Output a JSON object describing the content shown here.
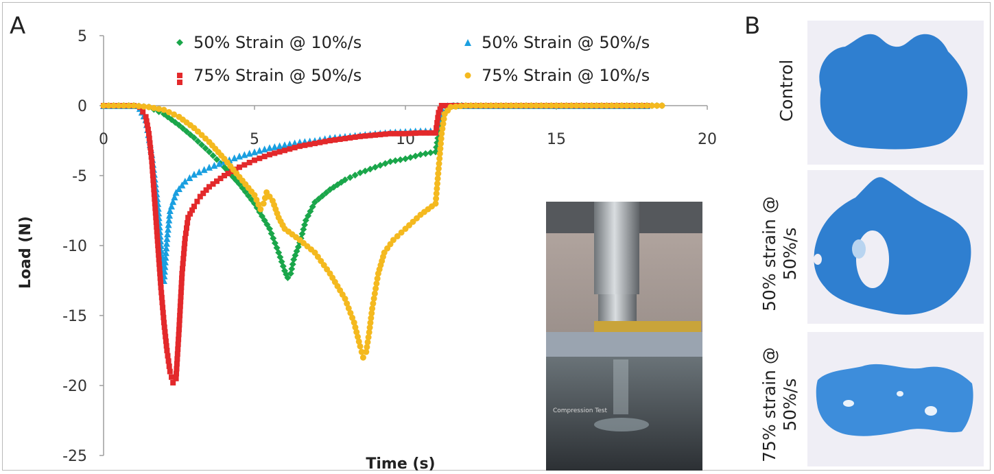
{
  "panels": {
    "a_label": "A",
    "b_label": "B"
  },
  "chart_data": {
    "type": "scatter",
    "xlabel": "Time (s)",
    "ylabel": "Load (N)",
    "xlim": [
      0,
      20
    ],
    "ylim": [
      -25,
      5
    ],
    "xticks": [
      0,
      5,
      10,
      15,
      20
    ],
    "yticks": [
      5,
      0,
      -5,
      -10,
      -15,
      -20,
      -25
    ],
    "grid": false,
    "legend_position": "top",
    "series": [
      {
        "name": "50% Strain @ 10%/s",
        "color": "#1aa64a",
        "marker": "diamond",
        "points": [
          [
            0,
            0
          ],
          [
            1,
            0
          ],
          [
            1.5,
            -0.1
          ],
          [
            2,
            -0.6
          ],
          [
            2.5,
            -1.4
          ],
          [
            3,
            -2.3
          ],
          [
            3.5,
            -3.3
          ],
          [
            4,
            -4.4
          ],
          [
            4.5,
            -5.6
          ],
          [
            5,
            -7
          ],
          [
            5.5,
            -8.8
          ],
          [
            5.8,
            -10.5
          ],
          [
            6,
            -11.8
          ],
          [
            6.1,
            -12.3
          ],
          [
            6.2,
            -12
          ],
          [
            6.3,
            -11
          ],
          [
            6.5,
            -9.8
          ],
          [
            6.7,
            -8.2
          ],
          [
            7,
            -6.9
          ],
          [
            7.5,
            -6
          ],
          [
            8,
            -5.3
          ],
          [
            8.5,
            -4.8
          ],
          [
            9,
            -4.4
          ],
          [
            9.5,
            -4
          ],
          [
            10,
            -3.8
          ],
          [
            10.5,
            -3.5
          ],
          [
            11,
            -3.3
          ],
          [
            11.1,
            -2
          ],
          [
            11.2,
            -0.8
          ],
          [
            11.4,
            -0.2
          ],
          [
            11.6,
            0
          ],
          [
            12,
            0
          ],
          [
            13,
            0
          ],
          [
            14,
            0
          ],
          [
            15,
            0
          ],
          [
            16,
            0
          ],
          [
            17,
            0
          ],
          [
            18,
            0
          ],
          [
            18.5,
            0
          ]
        ]
      },
      {
        "name": "50% Strain @ 50%/s",
        "color": "#1a9fe0",
        "marker": "triangle",
        "points": [
          [
            0,
            0
          ],
          [
            1,
            0
          ],
          [
            1.2,
            -0.2
          ],
          [
            1.4,
            -1
          ],
          [
            1.6,
            -3.5
          ],
          [
            1.8,
            -7
          ],
          [
            1.9,
            -10
          ],
          [
            2,
            -12.5
          ],
          [
            2.1,
            -9.5
          ],
          [
            2.2,
            -7.5
          ],
          [
            2.4,
            -6.2
          ],
          [
            2.7,
            -5.4
          ],
          [
            3,
            -4.9
          ],
          [
            3.5,
            -4.4
          ],
          [
            4,
            -4
          ],
          [
            4.5,
            -3.6
          ],
          [
            5,
            -3.3
          ],
          [
            5.5,
            -3
          ],
          [
            6,
            -2.8
          ],
          [
            6.5,
            -2.6
          ],
          [
            7,
            -2.5
          ],
          [
            7.5,
            -2.3
          ],
          [
            8,
            -2.2
          ],
          [
            8.5,
            -2.1
          ],
          [
            9,
            -2
          ],
          [
            9.5,
            -1.9
          ],
          [
            10,
            -1.85
          ],
          [
            10.5,
            -1.8
          ],
          [
            11,
            -1.8
          ],
          [
            11.1,
            -1
          ],
          [
            11.2,
            -0.2
          ],
          [
            11.4,
            0
          ],
          [
            12,
            0
          ],
          [
            13,
            0
          ],
          [
            14,
            0
          ],
          [
            15,
            0
          ],
          [
            16,
            0
          ],
          [
            17,
            0
          ],
          [
            18,
            0
          ]
        ]
      },
      {
        "name": "75% Strain @ 50%/s",
        "color": "#e3292b",
        "marker": "square",
        "points": [
          [
            0,
            0
          ],
          [
            1,
            0
          ],
          [
            1.2,
            -0.1
          ],
          [
            1.4,
            -0.8
          ],
          [
            1.5,
            -2
          ],
          [
            1.6,
            -4
          ],
          [
            1.7,
            -7
          ],
          [
            1.8,
            -10
          ],
          [
            1.9,
            -13
          ],
          [
            2,
            -15.5
          ],
          [
            2.1,
            -17.5
          ],
          [
            2.2,
            -19
          ],
          [
            2.3,
            -19.8
          ],
          [
            2.4,
            -19.5
          ],
          [
            2.5,
            -16
          ],
          [
            2.6,
            -12
          ],
          [
            2.7,
            -9.5
          ],
          [
            2.8,
            -8
          ],
          [
            3,
            -7.2
          ],
          [
            3.2,
            -6.5
          ],
          [
            3.5,
            -5.8
          ],
          [
            4,
            -5
          ],
          [
            4.5,
            -4.4
          ],
          [
            5,
            -3.9
          ],
          [
            5.5,
            -3.5
          ],
          [
            6,
            -3.2
          ],
          [
            6.5,
            -2.9
          ],
          [
            7,
            -2.7
          ],
          [
            7.5,
            -2.5
          ],
          [
            8,
            -2.35
          ],
          [
            8.5,
            -2.2
          ],
          [
            9,
            -2.1
          ],
          [
            9.5,
            -2
          ],
          [
            10,
            -2
          ],
          [
            10.5,
            -1.95
          ],
          [
            11,
            -1.95
          ],
          [
            11.1,
            -0.5
          ],
          [
            11.2,
            0
          ],
          [
            11.5,
            0
          ],
          [
            12,
            0
          ],
          [
            13,
            0
          ],
          [
            14,
            0
          ],
          [
            15,
            0
          ],
          [
            16,
            0
          ],
          [
            17,
            0
          ],
          [
            18,
            0
          ]
        ]
      },
      {
        "name": "75% Strain @ 10%/s",
        "color": "#f4b91f",
        "marker": "circle",
        "points": [
          [
            0,
            0
          ],
          [
            1,
            0
          ],
          [
            1.5,
            -0.1
          ],
          [
            2,
            -0.3
          ],
          [
            2.5,
            -0.8
          ],
          [
            3,
            -1.6
          ],
          [
            3.5,
            -2.6
          ],
          [
            4,
            -3.8
          ],
          [
            4.5,
            -5.1
          ],
          [
            5,
            -6.4
          ],
          [
            5.2,
            -7.4
          ],
          [
            5.3,
            -7
          ],
          [
            5.4,
            -6.2
          ],
          [
            5.6,
            -6.8
          ],
          [
            5.8,
            -8
          ],
          [
            6,
            -8.8
          ],
          [
            6.5,
            -9.6
          ],
          [
            7,
            -10.5
          ],
          [
            7.5,
            -12
          ],
          [
            8,
            -13.8
          ],
          [
            8.3,
            -15.5
          ],
          [
            8.5,
            -17.2
          ],
          [
            8.6,
            -18
          ],
          [
            8.7,
            -17.6
          ],
          [
            8.8,
            -16.2
          ],
          [
            8.9,
            -14.5
          ],
          [
            9.1,
            -12
          ],
          [
            9.3,
            -10.5
          ],
          [
            9.6,
            -9.6
          ],
          [
            10,
            -8.8
          ],
          [
            10.5,
            -7.8
          ],
          [
            11,
            -7
          ],
          [
            11.1,
            -4.5
          ],
          [
            11.2,
            -2
          ],
          [
            11.3,
            -0.6
          ],
          [
            11.5,
            -0.1
          ],
          [
            12,
            0
          ],
          [
            13,
            0
          ],
          [
            14,
            0
          ],
          [
            15,
            0
          ],
          [
            16,
            0
          ],
          [
            17,
            0
          ],
          [
            18,
            0
          ],
          [
            18.5,
            0
          ]
        ]
      }
    ]
  },
  "panel_b": {
    "rows": [
      {
        "label": "Control"
      },
      {
        "label": "50% strain @ 50%/s"
      },
      {
        "label": "75% strain @ 50%/s"
      }
    ],
    "stain_color": "#2f7fd0"
  },
  "inset": {
    "caption": "Compression Test"
  }
}
